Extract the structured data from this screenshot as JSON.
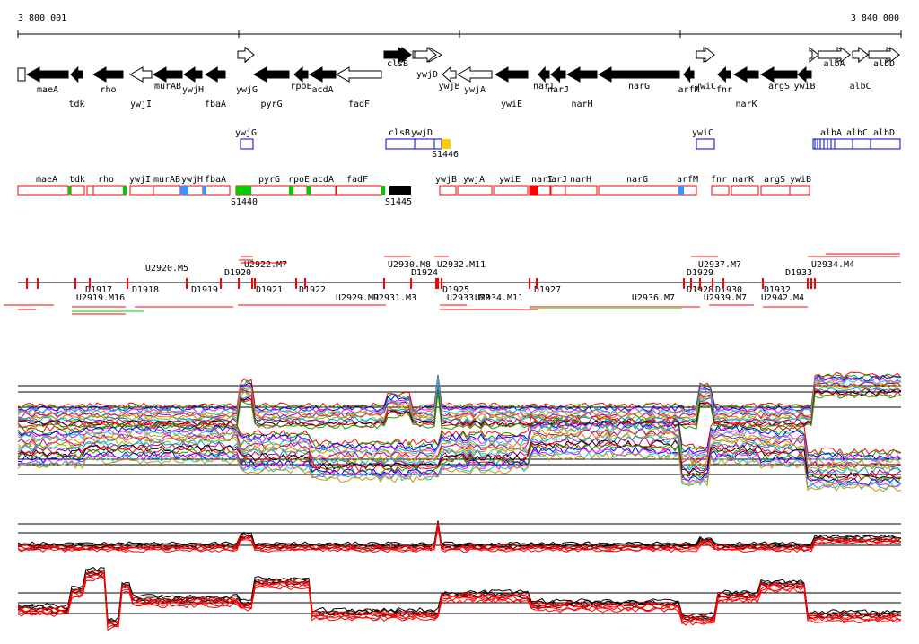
{
  "ruler": {
    "start_label": "3 800 001",
    "end_label": "3 840 000"
  },
  "colors": {
    "gene_fill": "#000000",
    "gene_outline": "#000000",
    "blue_box": "#0000cc",
    "red_box": "#ff0000",
    "green_segment": "#00cc00",
    "yellow_mark": "#ffcc00",
    "blue_segment": "#3399ff",
    "trace_black": "#000000",
    "trace_red": "#ff0000"
  },
  "genes_top": [
    {
      "label": "maeA"
    },
    {
      "label": "tdk"
    },
    {
      "label": "rho"
    },
    {
      "label": "ywjI"
    },
    {
      "label": "murAB"
    },
    {
      "label": "ywjH"
    },
    {
      "label": "fbaA"
    },
    {
      "label": "ywjG"
    },
    {
      "label": "pyrG"
    },
    {
      "label": "rpoE"
    },
    {
      "label": "acdA"
    },
    {
      "label": "fadF"
    },
    {
      "label": "clsB"
    },
    {
      "label": "ywjD"
    },
    {
      "label": "ywjB"
    },
    {
      "label": "ywjA"
    },
    {
      "label": "ywiE"
    },
    {
      "label": "narI"
    },
    {
      "label": "narJ"
    },
    {
      "label": "narH"
    },
    {
      "label": "narG"
    },
    {
      "label": "arfM"
    },
    {
      "label": "ywiC"
    },
    {
      "label": "fnr"
    },
    {
      "label": "narK"
    },
    {
      "label": "argS"
    },
    {
      "label": "ywiB"
    },
    {
      "label": "albA"
    },
    {
      "label": "albC"
    },
    {
      "label": "albD"
    }
  ],
  "blue_track": [
    {
      "label": "ywjG"
    },
    {
      "label": "clsB"
    },
    {
      "label": "ywjD"
    },
    {
      "label": "ywiC"
    },
    {
      "label": "albA"
    },
    {
      "label": "albC"
    },
    {
      "label": "albD"
    },
    {
      "label": "S1446"
    }
  ],
  "red_track": [
    {
      "label": "maeA"
    },
    {
      "label": "tdk"
    },
    {
      "label": "rho"
    },
    {
      "label": "ywjI"
    },
    {
      "label": "murAB"
    },
    {
      "label": "ywjH"
    },
    {
      "label": "fbaA"
    },
    {
      "label": "pyrG"
    },
    {
      "label": "rpoE"
    },
    {
      "label": "acdA"
    },
    {
      "label": "fadF"
    },
    {
      "label": "ywjB"
    },
    {
      "label": "ywjA"
    },
    {
      "label": "ywiE"
    },
    {
      "label": "narI"
    },
    {
      "label": "narJ"
    },
    {
      "label": "narH"
    },
    {
      "label": "narG"
    },
    {
      "label": "arfM"
    },
    {
      "label": "fnr"
    },
    {
      "label": "narK"
    },
    {
      "label": "argS"
    },
    {
      "label": "ywiB"
    },
    {
      "label": "S1440"
    },
    {
      "label": "S1445"
    }
  ],
  "segments": [
    {
      "label": "U2920.M5"
    },
    {
      "label": "D1920"
    },
    {
      "label": "U2922.M7"
    },
    {
      "label": "U2930.M8"
    },
    {
      "label": "U2932.M11"
    },
    {
      "label": "D1924"
    },
    {
      "label": "D1929"
    },
    {
      "label": "U2937.M7"
    },
    {
      "label": "D1933"
    },
    {
      "label": "U2934.M4"
    },
    {
      "label": "D1918"
    },
    {
      "label": "D1917"
    },
    {
      "label": "U2919.M16"
    },
    {
      "label": "D1919"
    },
    {
      "label": "D1921"
    },
    {
      "label": "D1922"
    },
    {
      "label": "U2929.M9"
    },
    {
      "label": "U2931.M3"
    },
    {
      "label": "D1925"
    },
    {
      "label": "U2933.M2"
    },
    {
      "label": "U2934.M11"
    },
    {
      "label": "D1927"
    },
    {
      "label": "U2936.M7"
    },
    {
      "label": "D1928"
    },
    {
      "label": "D1930"
    },
    {
      "label": "U2939.M7"
    },
    {
      "label": "D1932"
    },
    {
      "label": "U2942.M4"
    }
  ]
}
